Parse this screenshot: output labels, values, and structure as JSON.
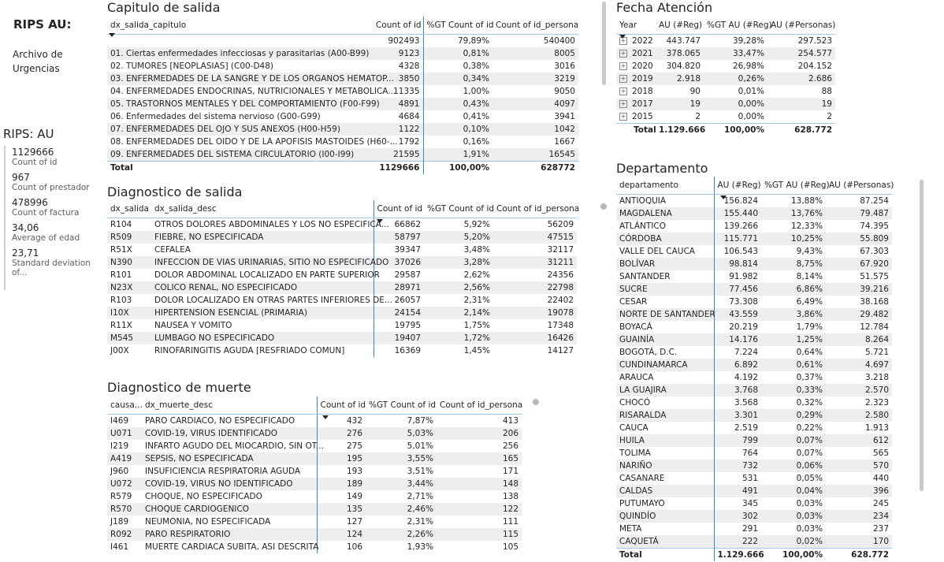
{
  "left": {
    "title": "RIPS AU:",
    "subtitle": "Archivo de Urgencias",
    "kpi_title": "RIPS: AU",
    "kpis": [
      {
        "value": "1129666",
        "label": "Count of id"
      },
      {
        "value": "967",
        "label": "Count of prestador"
      },
      {
        "value": "478996",
        "label": "Count of factura"
      },
      {
        "value": "34,06",
        "label": "Average of edad"
      },
      {
        "value": "23,71",
        "label": "Standard deviation of..."
      }
    ]
  },
  "capitulo": {
    "title": "Capitulo de salida",
    "headers": [
      "dx_salida_capitulo",
      "Count of id",
      "%GT Count of id",
      "Count of id_persona"
    ],
    "rows": [
      [
        "",
        "902493",
        "79,89%",
        "540400"
      ],
      [
        "01. Ciertas enfermedades infecciosas y parasitarias (A00-B99)",
        "9123",
        "0,81%",
        "8005"
      ],
      [
        "02. TUMORES [NEOPLASIAS] (C00-D48)",
        "4328",
        "0,38%",
        "3016"
      ],
      [
        "03. ENFERMEDADES DE LA SANGRE Y DE LOS ORGANOS HEMATOP...",
        "3850",
        "0,34%",
        "3219"
      ],
      [
        "04. ENFERMEDADES ENDOCRINAS, NUTRICIONALES Y METABOLICA...",
        "11335",
        "1,00%",
        "9050"
      ],
      [
        "05. TRASTORNOS MENTALES Y DEL COMPORTAMIENTO (F00-F99)",
        "4891",
        "0,43%",
        "4097"
      ],
      [
        "06. Enfermedades del sistema nervioso (G00-G99)",
        "4684",
        "0,41%",
        "3941"
      ],
      [
        "07. ENFERMEDADES DEL OJO Y SUS ANEXOS (H00-H59)",
        "1122",
        "0,10%",
        "1042"
      ],
      [
        "08. ENFERMEDADES DEL OIDO Y DE LA APOFISIS MASTOIDES (H60-...",
        "1792",
        "0,16%",
        "1667"
      ],
      [
        "09. ENFERMEDADES DEL SISTEMA CIRCULATORIO (I00-I99)",
        "21595",
        "1,91%",
        "16545"
      ]
    ],
    "total": [
      "Total",
      "1129666",
      "100,00%",
      "628772"
    ]
  },
  "diagnostico_salida": {
    "title": "Diagnostico de salida",
    "headers": [
      "dx_salida",
      "dx_salida_desc",
      "Count of id",
      "%GT Count of id",
      "Count of id_persona"
    ],
    "rows": [
      [
        "R104",
        "OTROS DOLORES ABDOMINALES Y LOS NO ESPECIFICA...",
        "66862",
        "5,92%",
        "56209"
      ],
      [
        "R509",
        "FIEBRE, NO ESPECIFICADA",
        "58797",
        "5,20%",
        "47515"
      ],
      [
        "R51X",
        "CEFALEA",
        "39347",
        "3,48%",
        "32117"
      ],
      [
        "N390",
        "INFECCION DE VIAS URINARIAS, SITIO NO ESPECIFICADO",
        "37026",
        "3,28%",
        "31211"
      ],
      [
        "R101",
        "DOLOR ABDOMINAL LOCALIZADO EN PARTE SUPERIOR",
        "29587",
        "2,62%",
        "24356"
      ],
      [
        "N23X",
        "COLICO RENAL, NO ESPECIFICADO",
        "28971",
        "2,56%",
        "22798"
      ],
      [
        "R103",
        "DOLOR LOCALIZADO EN OTRAS PARTES INFERIORES DE...",
        "26057",
        "2,31%",
        "22402"
      ],
      [
        "I10X",
        "HIPERTENSION ESENCIAL (PRIMARIA)",
        "24154",
        "2,14%",
        "19078"
      ],
      [
        "R11X",
        "NAUSEA Y VOMITO",
        "19795",
        "1,75%",
        "17348"
      ],
      [
        "M545",
        "LUMBAGO NO ESPECIFICADO",
        "19407",
        "1,72%",
        "16426"
      ],
      [
        "J00X",
        "RINOFARINGITIS AGUDA [RESFRIADO COMUN]",
        "16369",
        "1,45%",
        "14127"
      ]
    ]
  },
  "diagnostico_muerte": {
    "title": "Diagnostico de muerte",
    "headers": [
      "causa...",
      "dx_muerte_desc",
      "Count of id",
      "%GT Count of id",
      "Count of id_persona"
    ],
    "rows": [
      [
        "I469",
        "PARO CARDIACO, NO ESPECIFICADO",
        "432",
        "7,87%",
        "413"
      ],
      [
        "U071",
        "COVID-19, VIRUS IDENTIFICADO",
        "276",
        "5,03%",
        "206"
      ],
      [
        "I219",
        "INFARTO AGUDO DEL MIOCARDIO, SIN OT...",
        "275",
        "5,01%",
        "256"
      ],
      [
        "A419",
        "SEPSIS, NO ESPECIFICADA",
        "195",
        "3,55%",
        "165"
      ],
      [
        "J960",
        "INSUFICIENCIA RESPIRATORIA AGUDA",
        "193",
        "3,51%",
        "171"
      ],
      [
        "U072",
        "COVID-19, VIRUS NO IDENTIFICADO",
        "189",
        "3,44%",
        "148"
      ],
      [
        "R579",
        "CHOQUE, NO ESPECIFICADO",
        "149",
        "2,71%",
        "138"
      ],
      [
        "R570",
        "CHOQUE CARDIOGENICO",
        "135",
        "2,46%",
        "122"
      ],
      [
        "J189",
        "NEUMONIA, NO ESPECIFICADA",
        "127",
        "2,31%",
        "111"
      ],
      [
        "R092",
        "PARO RESPIRATORIO",
        "124",
        "2,26%",
        "115"
      ],
      [
        "I461",
        "MUERTE CARDIACA SUBITA, ASI DESCRITA",
        "106",
        "1,93%",
        "105"
      ]
    ]
  },
  "fecha": {
    "title": "Fecha Atención",
    "headers": [
      "Year",
      "AU (#Reg)",
      "%GT AU (#Reg)",
      "AU (#Personas)"
    ],
    "rows": [
      [
        "2022",
        "443.747",
        "39,28%",
        "297.523"
      ],
      [
        "2021",
        "378.065",
        "33,47%",
        "254.577"
      ],
      [
        "2020",
        "304.820",
        "26,98%",
        "204.152"
      ],
      [
        "2019",
        "2.918",
        "0,26%",
        "2.686"
      ],
      [
        "2018",
        "90",
        "0,01%",
        "88"
      ],
      [
        "2017",
        "19",
        "0,00%",
        "19"
      ],
      [
        "2015",
        "2",
        "0,00%",
        "2"
      ]
    ],
    "total": [
      "Total",
      "1.129.666",
      "100,00%",
      "628.772"
    ]
  },
  "departamento": {
    "title": "Departamento",
    "headers": [
      "departamento",
      "AU (#Reg)",
      "%GT AU (#Reg)",
      "AU (#Personas)"
    ],
    "rows": [
      [
        "ANTIOQUIA",
        "156.824",
        "13,88%",
        "87.254"
      ],
      [
        "MAGDALENA",
        "155.440",
        "13,76%",
        "79.487"
      ],
      [
        "ATLÁNTICO",
        "139.266",
        "12,33%",
        "74.395"
      ],
      [
        "CÓRDOBA",
        "115.771",
        "10,25%",
        "55.809"
      ],
      [
        "VALLE DEL CAUCA",
        "106.543",
        "9,43%",
        "67.303"
      ],
      [
        "BOLÍVAR",
        "98.814",
        "8,75%",
        "67.920"
      ],
      [
        "SANTANDER",
        "91.982",
        "8,14%",
        "51.575"
      ],
      [
        "SUCRE",
        "77.456",
        "6,86%",
        "39.216"
      ],
      [
        "CESAR",
        "73.308",
        "6,49%",
        "38.168"
      ],
      [
        "NORTE DE SANTANDER",
        "43.559",
        "3,86%",
        "29.482"
      ],
      [
        "BOYACÁ",
        "20.219",
        "1,79%",
        "12.784"
      ],
      [
        "GUAINÍA",
        "14.176",
        "1,25%",
        "8.264"
      ],
      [
        "BOGOTÁ, D.C.",
        "7.224",
        "0,64%",
        "5.721"
      ],
      [
        "CUNDINAMARCA",
        "6.892",
        "0,61%",
        "4.697"
      ],
      [
        "ARAUCA",
        "4.192",
        "0,37%",
        "3.218"
      ],
      [
        "LA GUAJIRA",
        "3.768",
        "0,33%",
        "2.570"
      ],
      [
        "CHOCÓ",
        "3.568",
        "0,32%",
        "2.323"
      ],
      [
        "RISARALDA",
        "3.301",
        "0,29%",
        "2.580"
      ],
      [
        "CAUCA",
        "2.519",
        "0,22%",
        "1.913"
      ],
      [
        "HUILA",
        "799",
        "0,07%",
        "612"
      ],
      [
        "TOLIMA",
        "764",
        "0,07%",
        "565"
      ],
      [
        "NARIÑO",
        "732",
        "0,06%",
        "570"
      ],
      [
        "CASANARE",
        "531",
        "0,05%",
        "440"
      ],
      [
        "CALDAS",
        "491",
        "0,04%",
        "396"
      ],
      [
        "PUTUMAYO",
        "345",
        "0,03%",
        "245"
      ],
      [
        "QUINDÍO",
        "302",
        "0,03%",
        "234"
      ],
      [
        "META",
        "291",
        "0,03%",
        "237"
      ],
      [
        "CAQUETÁ",
        "222",
        "0,02%",
        "170"
      ]
    ],
    "total": [
      "Total",
      "1.129.666",
      "100,00%",
      "628.772"
    ]
  }
}
